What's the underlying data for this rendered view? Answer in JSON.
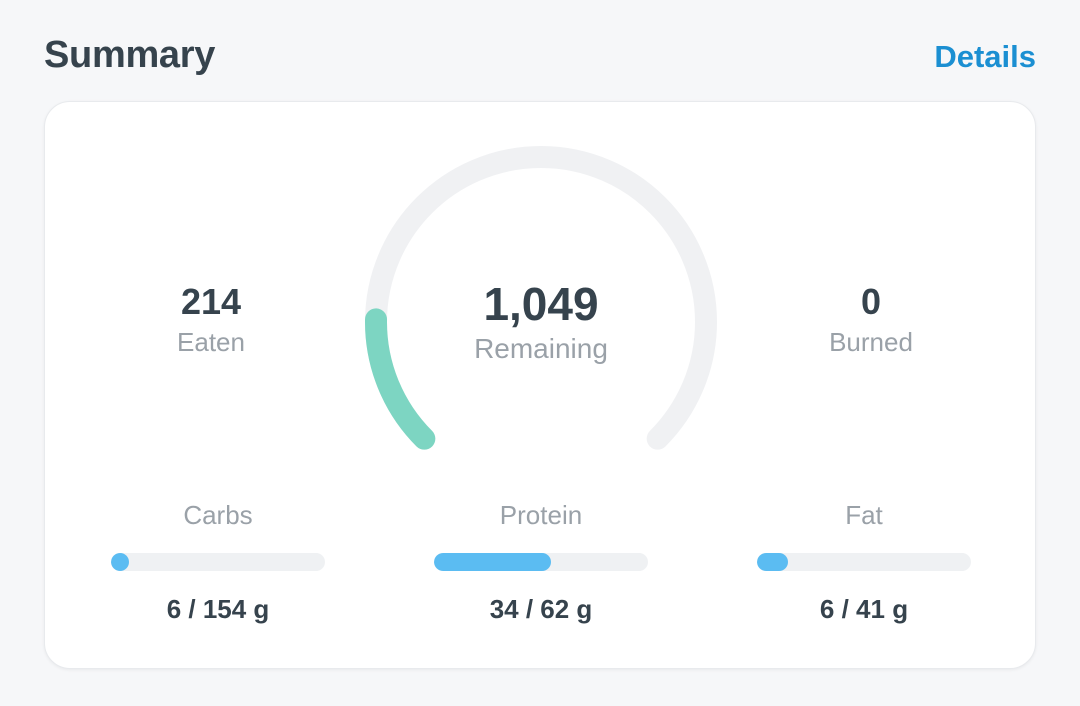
{
  "header": {
    "title": "Summary",
    "details_label": "Details"
  },
  "summary": {
    "eaten": {
      "value": "214",
      "label": "Eaten"
    },
    "remaining": {
      "value": "1,049",
      "label": "Remaining"
    },
    "burned": {
      "value": "0",
      "label": "Burned"
    },
    "progress_fraction": 0.17
  },
  "macros": [
    {
      "label": "Carbs",
      "amount": "6 / 154 g",
      "current": 6,
      "goal": 154
    },
    {
      "label": "Protein",
      "amount": "34 / 62 g",
      "current": 34,
      "goal": 62
    },
    {
      "label": "Fat",
      "amount": "6 / 41 g",
      "current": 6,
      "goal": 41
    }
  ],
  "colors": {
    "gauge_track": "#f0f1f3",
    "gauge_fill": "#7dd5c2",
    "macro_fill": "#5bbcf2",
    "accent": "#1b8fd2"
  }
}
